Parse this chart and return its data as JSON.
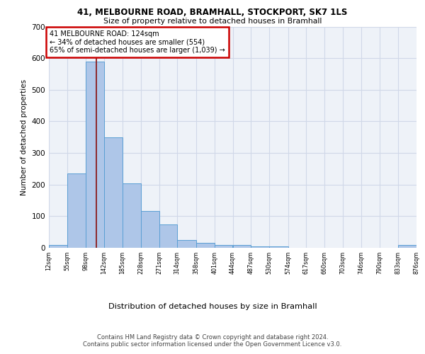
{
  "title_line1": "41, MELBOURNE ROAD, BRAMHALL, STOCKPORT, SK7 1LS",
  "title_line2": "Size of property relative to detached houses in Bramhall",
  "xlabel": "Distribution of detached houses by size in Bramhall",
  "ylabel": "Number of detached properties",
  "bar_color": "#aec6e8",
  "bar_edge_color": "#5a9fd4",
  "grid_color": "#d0d8e8",
  "background_color": "#eef2f8",
  "annotation_line1": "41 MELBOURNE ROAD: 124sqm",
  "annotation_line2": "← 34% of detached houses are smaller (554)",
  "annotation_line3": "65% of semi-detached houses are larger (1,039) →",
  "vline_x": 124,
  "vline_color": "#8b1a1a",
  "footer_text": "Contains HM Land Registry data © Crown copyright and database right 2024.\nContains public sector information licensed under the Open Government Licence v3.0.",
  "bin_edges": [
    12,
    55,
    98,
    142,
    185,
    228,
    271,
    314,
    358,
    401,
    444,
    487,
    530,
    574,
    617,
    660,
    703,
    746,
    790,
    833,
    876
  ],
  "bar_heights": [
    8,
    235,
    590,
    350,
    203,
    117,
    73,
    25,
    15,
    9,
    9,
    5,
    5,
    0,
    0,
    0,
    0,
    0,
    0,
    8
  ],
  "ylim": [
    0,
    700
  ],
  "yticks": [
    0,
    100,
    200,
    300,
    400,
    500,
    600,
    700
  ]
}
